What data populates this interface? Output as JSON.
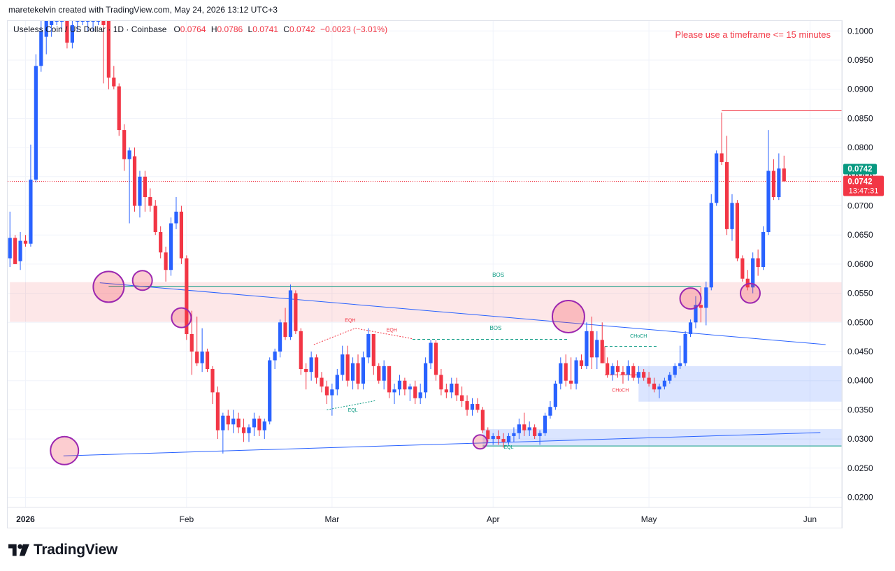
{
  "attribution": "maretekelvin created with TradingView.com, May 24, 2026 13:12 UTC+3",
  "legend": {
    "symbol": "Useless Coin / US Dollar · 1D · Coinbase",
    "o_label": "O",
    "o": "0.0764",
    "h_label": "H",
    "h": "0.0786",
    "l_label": "L",
    "l": "0.0741",
    "c_label": "C",
    "c": "0.0742",
    "change": "−0.0023 (−3.01%)"
  },
  "warning": "Please use a timeframe <= 15 minutes",
  "brand": "TradingView",
  "colors": {
    "up": "#2962ff",
    "down": "#f23645",
    "circle": "#9c27b0",
    "trend": "#2962ff",
    "bos": "#089981"
  },
  "chart_data": {
    "type": "candlestick",
    "symbol": "Useless Coin / US Dollar",
    "interval": "1D",
    "exchange": "Coinbase",
    "ylim": [
      0.018,
      0.1018
    ],
    "y_ticks": [
      "0.1000",
      "0.0950",
      "0.0900",
      "0.0850",
      "0.0800",
      "0.0750",
      "0.0700",
      "0.0650",
      "0.0600",
      "0.0550",
      "0.0500",
      "0.0450",
      "0.0400",
      "0.0350",
      "0.0300",
      "0.0250",
      "0.0200"
    ],
    "x_ticks": [
      {
        "day": 0,
        "label": "2026"
      },
      {
        "day": 31,
        "label": "Feb"
      },
      {
        "day": 59,
        "label": "Mar"
      },
      {
        "day": 90,
        "label": "Apr"
      },
      {
        "day": 120,
        "label": "May"
      },
      {
        "day": 151,
        "label": "Jun"
      }
    ],
    "first_day": -3,
    "candles": [
      [
        0.061,
        0.069,
        0.0595,
        0.0645
      ],
      [
        0.0645,
        0.065,
        0.06,
        0.06
      ],
      [
        0.0605,
        0.0655,
        0.059,
        0.064
      ],
      [
        0.064,
        0.065,
        0.063,
        0.0635
      ],
      [
        0.0635,
        0.0805,
        0.063,
        0.0745
      ],
      [
        0.0745,
        0.096,
        0.074,
        0.094
      ],
      [
        0.094,
        0.1018,
        0.093,
        0.1
      ],
      [
        0.099,
        0.1018,
        0.096,
        0.1018
      ],
      [
        0.101,
        0.1018,
        0.099,
        0.1018
      ],
      [
        0.1018,
        0.1018,
        0.101,
        0.1018
      ],
      [
        0.1018,
        0.1018,
        0.1,
        0.1018
      ],
      [
        0.1018,
        0.1018,
        0.097,
        0.098
      ],
      [
        0.098,
        0.1018,
        0.097,
        0.101
      ],
      [
        0.1018,
        0.1018,
        0.1,
        0.1018
      ],
      [
        0.1018,
        0.1018,
        0.101,
        0.1018
      ],
      [
        0.1018,
        0.1018,
        0.1,
        0.1018
      ],
      [
        0.1018,
        0.1018,
        0.1,
        0.1018
      ],
      [
        0.1018,
        0.1018,
        0.101,
        0.1018
      ],
      [
        0.1018,
        0.1018,
        0.091,
        0.101
      ],
      [
        0.1018,
        0.1018,
        0.09,
        0.092
      ],
      [
        0.092,
        0.094,
        0.09,
        0.0905
      ],
      [
        0.0905,
        0.091,
        0.082,
        0.083
      ],
      [
        0.083,
        0.084,
        0.076,
        0.078
      ],
      [
        0.078,
        0.08,
        0.067,
        0.0795
      ],
      [
        0.0785,
        0.08,
        0.069,
        0.07
      ],
      [
        0.07,
        0.076,
        0.068,
        0.075
      ],
      [
        0.075,
        0.076,
        0.069,
        0.0715
      ],
      [
        0.0715,
        0.073,
        0.069,
        0.07
      ],
      [
        0.07,
        0.071,
        0.065,
        0.0655
      ],
      [
        0.0655,
        0.0665,
        0.061,
        0.062
      ],
      [
        0.062,
        0.063,
        0.057,
        0.059
      ],
      [
        0.059,
        0.068,
        0.058,
        0.067
      ],
      [
        0.067,
        0.0715,
        0.066,
        0.069
      ],
      [
        0.069,
        0.07,
        0.06,
        0.061
      ],
      [
        0.061,
        0.0615,
        0.047,
        0.048
      ],
      [
        0.048,
        0.052,
        0.041,
        0.045
      ],
      [
        0.045,
        0.051,
        0.0425,
        0.043
      ],
      [
        0.043,
        0.049,
        0.0415,
        0.045
      ],
      [
        0.045,
        0.0455,
        0.0415,
        0.042
      ],
      [
        0.042,
        0.0425,
        0.036,
        0.038
      ],
      [
        0.038,
        0.039,
        0.03,
        0.0315
      ],
      [
        0.0315,
        0.0345,
        0.0275,
        0.034
      ],
      [
        0.034,
        0.035,
        0.0315,
        0.0325
      ],
      [
        0.0325,
        0.035,
        0.031,
        0.0335
      ],
      [
        0.0335,
        0.0345,
        0.031,
        0.032
      ],
      [
        0.032,
        0.0335,
        0.0295,
        0.031
      ],
      [
        0.031,
        0.0325,
        0.0295,
        0.032
      ],
      [
        0.032,
        0.0345,
        0.0305,
        0.0335
      ],
      [
        0.0335,
        0.034,
        0.0305,
        0.0315
      ],
      [
        0.0315,
        0.0335,
        0.03,
        0.033
      ],
      [
        0.033,
        0.044,
        0.0325,
        0.0435
      ],
      [
        0.0435,
        0.0455,
        0.042,
        0.045
      ],
      [
        0.045,
        0.0505,
        0.044,
        0.05
      ],
      [
        0.05,
        0.0525,
        0.047,
        0.0475
      ],
      [
        0.0475,
        0.0565,
        0.047,
        0.0555
      ],
      [
        0.055,
        0.0555,
        0.048,
        0.0485
      ],
      [
        0.0485,
        0.049,
        0.041,
        0.042
      ],
      [
        0.042,
        0.043,
        0.0385,
        0.0415
      ],
      [
        0.0415,
        0.045,
        0.04,
        0.044
      ],
      [
        0.044,
        0.0445,
        0.0395,
        0.0405
      ],
      [
        0.0405,
        0.0415,
        0.038,
        0.039
      ],
      [
        0.039,
        0.04,
        0.036,
        0.0375
      ],
      [
        0.0375,
        0.0395,
        0.034,
        0.0385
      ],
      [
        0.0385,
        0.042,
        0.0375,
        0.041
      ],
      [
        0.041,
        0.046,
        0.04,
        0.0445
      ],
      [
        0.0445,
        0.046,
        0.039,
        0.04
      ],
      [
        0.04,
        0.044,
        0.0385,
        0.043
      ],
      [
        0.043,
        0.0445,
        0.0385,
        0.0395
      ],
      [
        0.0395,
        0.045,
        0.0385,
        0.044
      ],
      [
        0.044,
        0.049,
        0.043,
        0.048
      ],
      [
        0.048,
        0.048,
        0.041,
        0.0425
      ],
      [
        0.0425,
        0.043,
        0.0395,
        0.04
      ],
      [
        0.04,
        0.0435,
        0.0385,
        0.0425
      ],
      [
        0.0425,
        0.0425,
        0.037,
        0.038
      ],
      [
        0.038,
        0.0395,
        0.036,
        0.0385
      ],
      [
        0.0385,
        0.041,
        0.0375,
        0.04
      ],
      [
        0.04,
        0.0405,
        0.0375,
        0.0385
      ],
      [
        0.0385,
        0.0395,
        0.0365,
        0.039
      ],
      [
        0.039,
        0.04,
        0.036,
        0.037
      ],
      [
        0.037,
        0.0395,
        0.036,
        0.038
      ],
      [
        0.038,
        0.044,
        0.037,
        0.043
      ],
      [
        0.043,
        0.047,
        0.042,
        0.0465
      ],
      [
        0.0465,
        0.047,
        0.04,
        0.041
      ],
      [
        0.041,
        0.042,
        0.0375,
        0.0385
      ],
      [
        0.0385,
        0.0395,
        0.037,
        0.038
      ],
      [
        0.038,
        0.0405,
        0.037,
        0.0395
      ],
      [
        0.0395,
        0.0405,
        0.0365,
        0.0375
      ],
      [
        0.0375,
        0.039,
        0.0355,
        0.0365
      ],
      [
        0.0365,
        0.0375,
        0.034,
        0.035
      ],
      [
        0.035,
        0.037,
        0.034,
        0.036
      ],
      [
        0.036,
        0.037,
        0.0345,
        0.035
      ],
      [
        0.035,
        0.0355,
        0.031,
        0.0315
      ],
      [
        0.0315,
        0.032,
        0.0295,
        0.03
      ],
      [
        0.03,
        0.031,
        0.029,
        0.0305
      ],
      [
        0.0305,
        0.0315,
        0.029,
        0.03
      ],
      [
        0.03,
        0.031,
        0.0285,
        0.0295
      ],
      [
        0.0295,
        0.031,
        0.029,
        0.0305
      ],
      [
        0.0305,
        0.032,
        0.0295,
        0.031
      ],
      [
        0.031,
        0.0335,
        0.03,
        0.0325
      ],
      [
        0.0325,
        0.0345,
        0.0305,
        0.0315
      ],
      [
        0.0315,
        0.033,
        0.0305,
        0.032
      ],
      [
        0.032,
        0.0325,
        0.03,
        0.0305
      ],
      [
        0.0305,
        0.0315,
        0.029,
        0.031
      ],
      [
        0.031,
        0.0345,
        0.0305,
        0.034
      ],
      [
        0.034,
        0.0365,
        0.0335,
        0.0355
      ],
      [
        0.0355,
        0.04,
        0.035,
        0.0395
      ],
      [
        0.0395,
        0.044,
        0.0385,
        0.043
      ],
      [
        0.043,
        0.0445,
        0.039,
        0.04
      ],
      [
        0.04,
        0.044,
        0.0385,
        0.0395
      ],
      [
        0.0395,
        0.044,
        0.0385,
        0.0435
      ],
      [
        0.0435,
        0.0445,
        0.042,
        0.0425
      ],
      [
        0.0425,
        0.05,
        0.042,
        0.0485
      ],
      [
        0.0485,
        0.051,
        0.042,
        0.044
      ],
      [
        0.044,
        0.0485,
        0.042,
        0.047
      ],
      [
        0.047,
        0.05,
        0.043,
        0.043
      ],
      [
        0.043,
        0.044,
        0.0405,
        0.041
      ],
      [
        0.041,
        0.043,
        0.04,
        0.0425
      ],
      [
        0.0425,
        0.0435,
        0.0405,
        0.0415
      ],
      [
        0.0415,
        0.0425,
        0.0395,
        0.041
      ],
      [
        0.041,
        0.0435,
        0.04,
        0.0425
      ],
      [
        0.0425,
        0.043,
        0.04,
        0.0405
      ],
      [
        0.0405,
        0.0425,
        0.0395,
        0.0415
      ],
      [
        0.0415,
        0.042,
        0.04,
        0.0405
      ],
      [
        0.0405,
        0.0415,
        0.039,
        0.0395
      ],
      [
        0.0395,
        0.0405,
        0.038,
        0.0385
      ],
      [
        0.0385,
        0.0395,
        0.037,
        0.039
      ],
      [
        0.039,
        0.0405,
        0.0385,
        0.04
      ],
      [
        0.04,
        0.0415,
        0.0395,
        0.041
      ],
      [
        0.041,
        0.043,
        0.0405,
        0.0425
      ],
      [
        0.0425,
        0.046,
        0.042,
        0.043
      ],
      [
        0.043,
        0.0485,
        0.0425,
        0.048
      ],
      [
        0.048,
        0.0505,
        0.0475,
        0.05
      ],
      [
        0.05,
        0.0545,
        0.049,
        0.053
      ],
      [
        0.053,
        0.056,
        0.05,
        0.0525
      ],
      [
        0.0525,
        0.057,
        0.0495,
        0.056
      ],
      [
        0.056,
        0.072,
        0.0555,
        0.0705
      ],
      [
        0.0705,
        0.0795,
        0.07,
        0.079
      ],
      [
        0.079,
        0.086,
        0.077,
        0.0775
      ],
      [
        0.0775,
        0.082,
        0.065,
        0.066
      ],
      [
        0.066,
        0.072,
        0.064,
        0.0705
      ],
      [
        0.0705,
        0.071,
        0.0605,
        0.061
      ],
      [
        0.061,
        0.0615,
        0.057,
        0.0575
      ],
      [
        0.0575,
        0.059,
        0.0555,
        0.056
      ],
      [
        0.056,
        0.062,
        0.055,
        0.061
      ],
      [
        0.061,
        0.0625,
        0.058,
        0.0595
      ],
      [
        0.0595,
        0.0665,
        0.059,
        0.0655
      ],
      [
        0.0655,
        0.083,
        0.065,
        0.076
      ],
      [
        0.076,
        0.078,
        0.071,
        0.0715
      ],
      [
        0.0715,
        0.079,
        0.071,
        0.0764
      ],
      [
        0.0764,
        0.0786,
        0.0741,
        0.0742
      ]
    ],
    "annotation_labels": [
      "BOS",
      "BOS",
      "EQH",
      "EQH",
      "EQL",
      "EQL",
      "CHoCH",
      "CHoCH"
    ],
    "zones": [
      {
        "type": "supply",
        "y": [
          0.0501,
          0.0569
        ],
        "from_day": -3
      },
      {
        "type": "demand",
        "y": [
          0.0364,
          0.0425
        ],
        "from_day": 118
      },
      {
        "type": "demand",
        "y": [
          0.0288,
          0.0317
        ],
        "from_day": 88
      }
    ],
    "trendlines": [
      {
        "x": [
          7.3,
          153
        ],
        "y": [
          0.0271,
          0.0311
        ]
      },
      {
        "x": [
          14.3,
          154
        ],
        "y": [
          0.0568,
          0.0462
        ]
      }
    ],
    "levels": [
      {
        "type": "high",
        "y": 0.0863,
        "from_day": 134
      },
      {
        "type": "bos",
        "y": 0.0562,
        "from_day": 16
      },
      {
        "type": "last-price",
        "y": 0.0742
      }
    ],
    "price_labels": {
      "last": "0.0742",
      "close": "0.0742",
      "countdown": "13:47:31"
    }
  }
}
